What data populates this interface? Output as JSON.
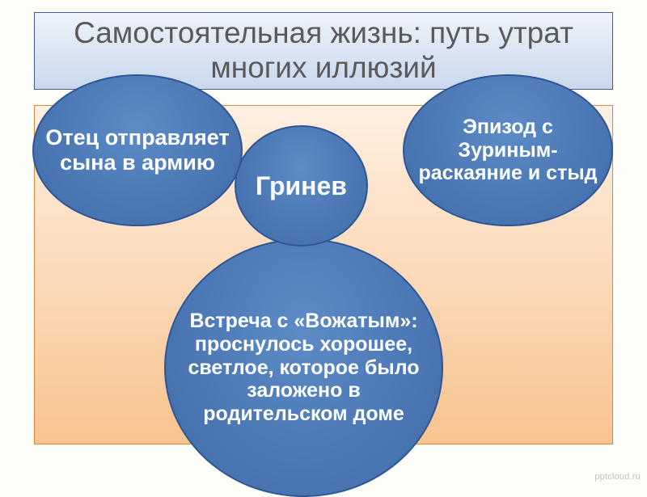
{
  "title": {
    "text": "Самостоятельная жизнь: путь утрат многих иллюзий",
    "font_size": 37,
    "color": "#5a5a5a",
    "bg_gradient_top": "#eef3fa",
    "bg_gradient_bottom": "#c9d8ed",
    "border_color": "#3f5e94"
  },
  "content_box": {
    "bg_gradient_top": "#fef0e2",
    "bg_gradient_bottom": "#f8c390",
    "border_color": "#d88a3a"
  },
  "ellipses": {
    "fill_gradient_top": "#5c8bc6",
    "fill_gradient_bottom": "#3f6aa8",
    "border_color": "#2f5593",
    "border_width": 2,
    "text_color": "#ffffff",
    "center": {
      "text": "Гринев"
    },
    "left": {
      "text": "Отец отправляет сына в армию"
    },
    "right": {
      "text": "Эпизод с Зуриным- раскаяние и стыд"
    },
    "bottom": {
      "text": "Встреча с «Вожатым»: проснулось хорошее, светлое, которое было заложено в родительском доме"
    }
  },
  "watermark": "pptcloud.ru"
}
